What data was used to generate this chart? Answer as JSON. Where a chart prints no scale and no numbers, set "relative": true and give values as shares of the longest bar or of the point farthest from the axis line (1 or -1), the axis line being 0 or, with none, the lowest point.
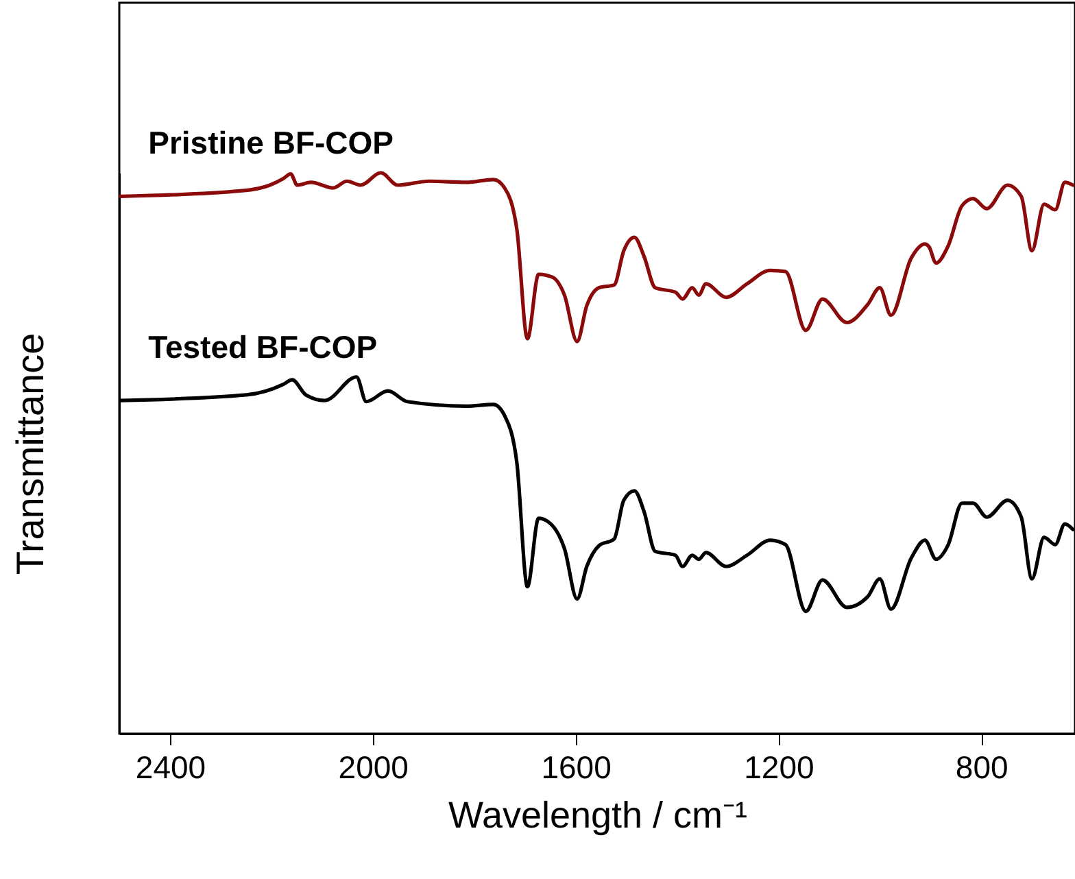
{
  "chart_data": {
    "type": "line",
    "relative": true,
    "xlabel": "Wavelength / cm⁻¹",
    "ylabel": "Transmittance",
    "xlim": [
      2500,
      615
    ],
    "xticks": [
      2400,
      2000,
      1600,
      1200,
      800
    ],
    "series": [
      {
        "name": "Pristine BF-COP",
        "color": "#8b0a0a",
        "x": [
          2497,
          2257,
          2203,
          2176,
          2162,
          2149,
          2122,
          2078,
          2051,
          2024,
          1984,
          1951,
          1889,
          1816,
          1762,
          1740,
          1716,
          1695,
          1673,
          1646,
          1622,
          1597,
          1578,
          1554,
          1524,
          1505,
          1484,
          1465,
          1443,
          1403,
          1389,
          1370,
          1357,
          1343,
          1303,
          1262,
          1216,
          1186,
          1146,
          1113,
          1065,
          1024,
          1000,
          978,
          938,
          911,
          903,
          889,
          865,
          838,
          816,
          789,
          748,
          721,
          700,
          676,
          654,
          635,
          619
        ],
        "values": [
          0.958,
          0.968,
          0.978,
          0.99,
          0.998,
          0.978,
          0.983,
          0.973,
          0.985,
          0.978,
          1.0,
          0.978,
          0.985,
          0.983,
          0.988,
          0.973,
          0.9,
          0.704,
          0.819,
          0.814,
          0.782,
          0.699,
          0.763,
          0.795,
          0.8,
          0.861,
          0.885,
          0.851,
          0.795,
          0.787,
          0.775,
          0.795,
          0.782,
          0.802,
          0.778,
          0.802,
          0.826,
          0.824,
          0.719,
          0.775,
          0.733,
          0.765,
          0.795,
          0.746,
          0.848,
          0.873,
          0.868,
          0.839,
          0.87,
          0.941,
          0.954,
          0.936,
          0.978,
          0.958,
          0.861,
          0.944,
          0.934,
          0.983,
          0.978
        ]
      },
      {
        "name": "Tested BF-COP",
        "color": "#000000",
        "x": [
          2497,
          2249,
          2176,
          2159,
          2132,
          2095,
          2032,
          2013,
          1970,
          1932,
          1816,
          1762,
          1740,
          1716,
          1695,
          1673,
          1649,
          1622,
          1597,
          1578,
          1554,
          1524,
          1505,
          1484,
          1465,
          1443,
          1403,
          1389,
          1370,
          1357,
          1343,
          1303,
          1262,
          1216,
          1186,
          1146,
          1113,
          1065,
          1024,
          1000,
          978,
          938,
          911,
          889,
          865,
          838,
          816,
          789,
          748,
          721,
          700,
          676,
          654,
          635,
          619
        ],
        "values": [
          0.594,
          0.604,
          0.623,
          0.631,
          0.604,
          0.594,
          0.636,
          0.592,
          0.611,
          0.592,
          0.584,
          0.587,
          0.567,
          0.484,
          0.262,
          0.384,
          0.374,
          0.33,
          0.24,
          0.298,
          0.335,
          0.347,
          0.416,
          0.433,
          0.396,
          0.325,
          0.318,
          0.298,
          0.318,
          0.311,
          0.323,
          0.298,
          0.318,
          0.345,
          0.337,
          0.218,
          0.274,
          0.225,
          0.244,
          0.276,
          0.222,
          0.313,
          0.345,
          0.311,
          0.337,
          0.411,
          0.411,
          0.386,
          0.416,
          0.386,
          0.276,
          0.35,
          0.337,
          0.374,
          0.364
        ]
      }
    ]
  }
}
